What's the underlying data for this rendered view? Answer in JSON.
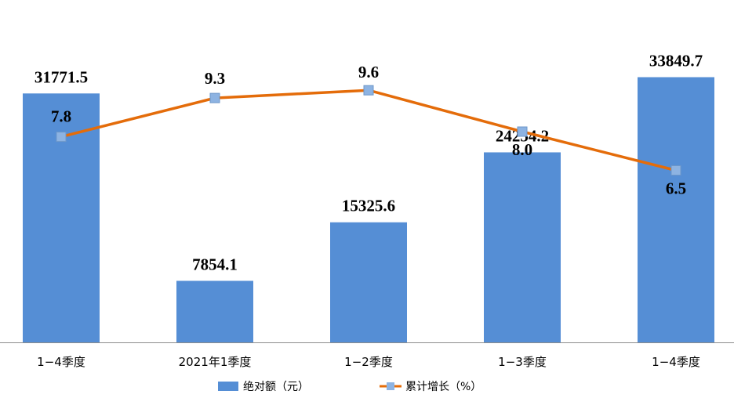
{
  "chart_data": {
    "type": "bar",
    "categories": [
      "1−4季度",
      "2021年1季度",
      "1−2季度",
      "1−3季度",
      "1−4季度"
    ],
    "series": [
      {
        "name": "绝对额（元）",
        "type": "bar",
        "axis": "left",
        "values": [
          31771.5,
          7854.1,
          15325.6,
          24254.2,
          33849.7
        ],
        "labels": [
          "31771.5",
          "7854.1",
          "15325.6",
          "24254.2",
          "33849.7"
        ],
        "color": "#558ED5"
      },
      {
        "name": "累计增长（%）",
        "type": "line",
        "axis": "right",
        "values": [
          7.8,
          9.3,
          9.6,
          8.0,
          6.5
        ],
        "labels": [
          "7.8",
          "9.3",
          "9.6",
          "8.0",
          "6.5"
        ],
        "color": "#E46C0A",
        "marker_color": "#8DB3E2"
      }
    ],
    "ylim": [
      0,
      35000
    ],
    "y2lim": [
      5,
      10
    ],
    "grid": false,
    "legend": "bottom"
  }
}
